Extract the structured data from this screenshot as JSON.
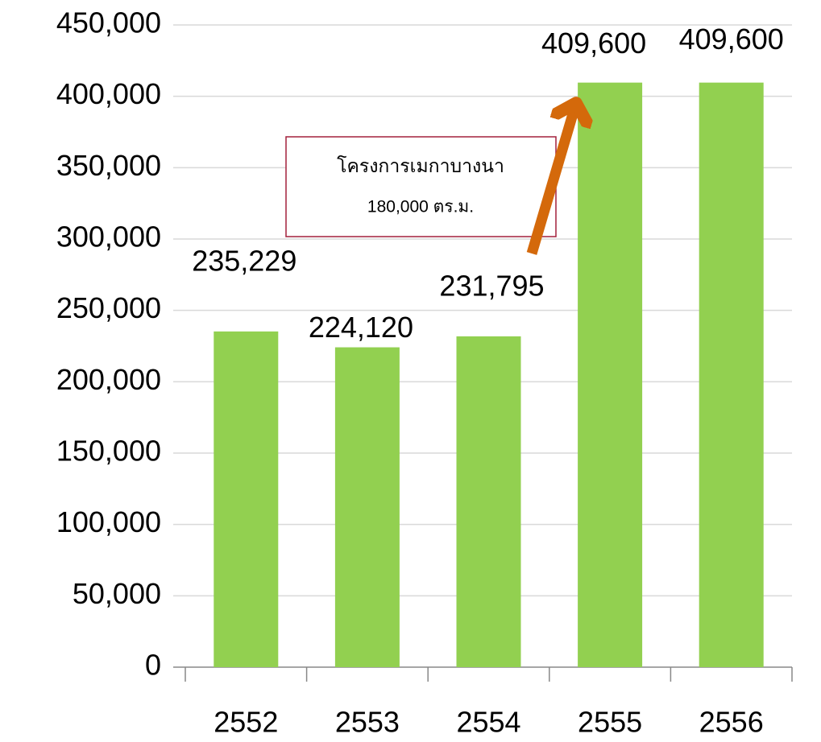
{
  "chart_data": {
    "type": "bar",
    "categories": [
      "2552",
      "2553",
      "2554",
      "2555",
      "2556"
    ],
    "values": [
      235229,
      224120,
      231795,
      409600,
      409600
    ],
    "value_labels": [
      "235,229",
      "224,120",
      "231,795",
      "409,600",
      "409,600"
    ],
    "color": "#92d050",
    "ylim": [
      0,
      450000
    ],
    "yticks": [
      0,
      {
        "value": 50000,
        "label": "50,000"
      },
      {
        "value": 100000,
        "label": "100,000"
      },
      {
        "value": 150000,
        "label": "150,000"
      },
      {
        "value": 200000,
        "label": "200,000"
      },
      {
        "value": 250000,
        "label": "250,000"
      },
      {
        "value": 300000,
        "label": "300,000"
      },
      {
        "value": 350000,
        "label": "350,000"
      },
      {
        "value": 400000,
        "label": "400,000"
      },
      {
        "value": 450000,
        "label": "450,000"
      }
    ],
    "grid": true,
    "annotations": [
      "โครงการเมกาบางนา",
      "180,000 ตร.ม."
    ]
  }
}
